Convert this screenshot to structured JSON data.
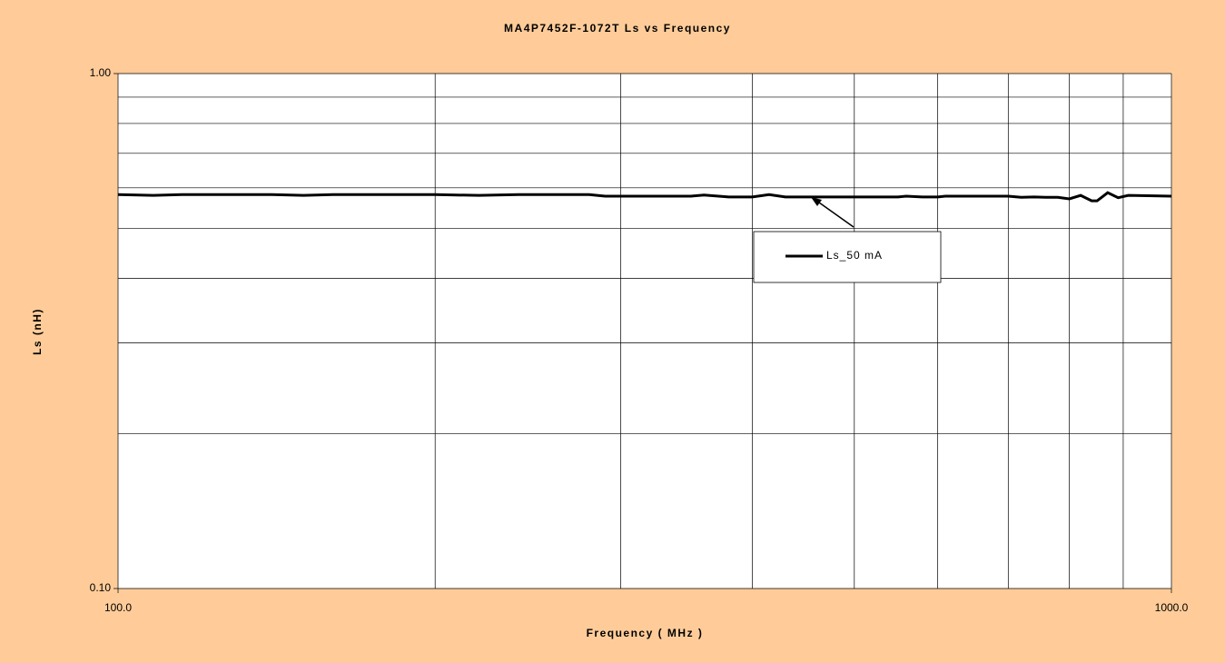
{
  "chart_data": {
    "type": "line",
    "title": "MA4P7452F-1072T Ls vs Frequency",
    "x_label": "Frequency ( MHz )",
    "y_label": "Ls (nH)",
    "x": [
      100,
      108,
      115,
      140,
      150,
      160,
      200,
      220,
      240,
      280,
      290,
      350,
      360,
      380,
      400,
      415,
      430,
      550,
      560,
      580,
      600,
      610,
      700,
      720,
      740,
      760,
      780,
      800,
      820,
      840,
      850,
      870,
      890,
      910,
      1000
    ],
    "series": [
      {
        "name": "Ls_50 mA",
        "color": "#000000",
        "values": [
          0.582,
          0.58,
          0.582,
          0.582,
          0.58,
          0.582,
          0.582,
          0.58,
          0.582,
          0.582,
          0.578,
          0.578,
          0.581,
          0.576,
          0.576,
          0.582,
          0.576,
          0.576,
          0.578,
          0.576,
          0.576,
          0.578,
          0.578,
          0.575,
          0.576,
          0.575,
          0.575,
          0.571,
          0.58,
          0.566,
          0.566,
          0.587,
          0.574,
          0.58,
          0.578
        ]
      }
    ],
    "xlim": [
      100,
      1000
    ],
    "ylim": [
      0.1,
      1
    ],
    "xticks": [
      {
        "value": 100,
        "label": "100.0"
      },
      {
        "value": 1000,
        "label": "1000.0"
      }
    ],
    "yticks": [
      {
        "value": 0.1,
        "label": "0.10"
      },
      {
        "value": 1,
        "label": "1.00"
      }
    ],
    "xminorticks": [
      200,
      300,
      400,
      500,
      600,
      700,
      800,
      900
    ],
    "yminorticks": [
      0.2,
      0.3,
      0.4,
      0.5,
      0.6,
      0.7,
      0.8,
      0.9
    ],
    "xscale": "log",
    "yscale": "log",
    "grid": true,
    "background": "#ffcc99",
    "plot_background": "#ffffff"
  }
}
